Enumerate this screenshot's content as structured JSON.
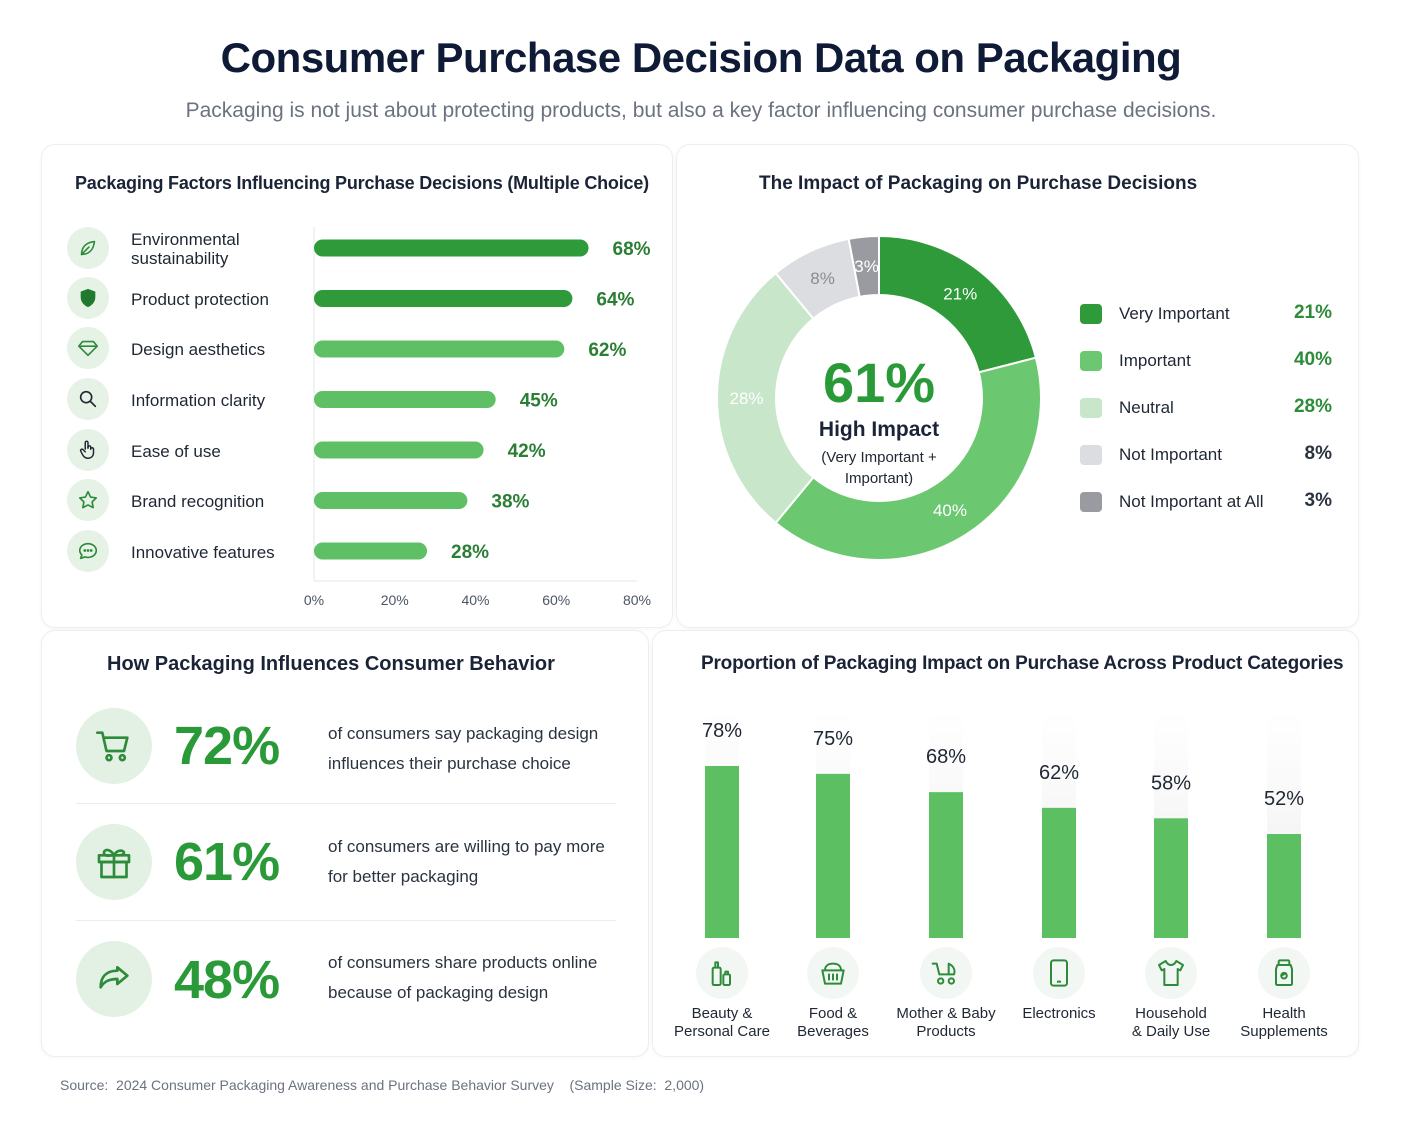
{
  "header": {
    "title": "Consumer Purchase Decision Data on Packaging",
    "subtitle": "Packaging is not just about protecting products, but also a key factor influencing consumer purchase decisions."
  },
  "colors": {
    "dark_green": "#2e9a3a",
    "mid_green": "#5cbf62",
    "light_green": "#c8e6c9",
    "light_gray": "#dcdde0",
    "dark_gray": "#9a9ba0",
    "text_green": "#2a8a36"
  },
  "factors": {
    "title": "Packaging Factors Influencing Purchase Decisions (Multiple Choice)",
    "items": [
      {
        "label": "Environmental sustainability",
        "icon": "leaf-icon"
      },
      {
        "label": "Product protection",
        "icon": "shield-icon"
      },
      {
        "label": "Design aesthetics",
        "icon": "diamond-icon"
      },
      {
        "label": "Information clarity",
        "icon": "search-icon"
      },
      {
        "label": "Ease of use",
        "icon": "hand-icon"
      },
      {
        "label": "Brand recognition",
        "icon": "star-icon"
      },
      {
        "label": "Innovative features",
        "icon": "chat-bubble-icon"
      }
    ]
  },
  "impact": {
    "title": "The Impact of Packaging on Purchase Decisions",
    "center_value": "61%",
    "center_label": "High Impact",
    "center_note": "(Very Important + Important)",
    "legend": [
      {
        "label": "Very Important",
        "value": "21%"
      },
      {
        "label": "Important",
        "value": "40%"
      },
      {
        "label": "Neutral",
        "value": "28%"
      },
      {
        "label": "Not Important",
        "value": "8%"
      },
      {
        "label": "Not Important at All",
        "value": "3%"
      }
    ]
  },
  "behavior": {
    "title": "How Packaging Influences Consumer Behavior",
    "items": [
      {
        "value": "72%",
        "text": "of consumers say packaging design influences their purchase choice",
        "icon": "cart-icon"
      },
      {
        "value": "61%",
        "text": "of consumers are willing to pay more for better packaging",
        "icon": "gift-icon"
      },
      {
        "value": "48%",
        "text": "of consumers share products online because of packaging design",
        "icon": "share-icon"
      }
    ]
  },
  "categories": {
    "title": "Proportion of Packaging Impact on Purchase Across Product Categories",
    "items": [
      {
        "label_line1": "Beauty &",
        "label_line2": "Personal Care",
        "icon": "bottles-icon"
      },
      {
        "label_line1": "Food &",
        "label_line2": "Beverages",
        "icon": "basket-icon"
      },
      {
        "label_line1": "Mother & Baby",
        "label_line2": "Products",
        "icon": "stroller-icon"
      },
      {
        "label_line1": "Electronics",
        "label_line2": "",
        "icon": "phone-icon"
      },
      {
        "label_line1": "Household",
        "label_line2": "& Daily Use",
        "icon": "tshirt-icon"
      },
      {
        "label_line1": "Health",
        "label_line2": "Supplements",
        "icon": "supplement-jar-icon"
      }
    ]
  },
  "footer": {
    "source": "Source:  2024 Consumer Packaging Awareness and Purchase Behavior Survey    (Sample Size:  2,000)"
  },
  "chart_data": [
    {
      "type": "bar",
      "orientation": "horizontal",
      "title": "Packaging Factors Influencing Purchase Decisions (Multiple Choice)",
      "categories": [
        "Environmental sustainability",
        "Product protection",
        "Design aesthetics",
        "Information clarity",
        "Ease of use",
        "Brand recognition",
        "Innovative features"
      ],
      "values": [
        68,
        64,
        62,
        45,
        42,
        38,
        28
      ],
      "value_labels": [
        "68%",
        "64%",
        "62%",
        "45%",
        "42%",
        "38%",
        "28%"
      ],
      "xlim": [
        0,
        80
      ],
      "x_ticks": [
        "0%",
        "20%",
        "40%",
        "60%",
        "80%"
      ]
    },
    {
      "type": "pie",
      "donut": true,
      "title": "The Impact of Packaging on Purchase Decisions",
      "categories": [
        "Very Important",
        "Important",
        "Neutral",
        "Not Important",
        "Not Important at All"
      ],
      "values": [
        21,
        40,
        28,
        8,
        3
      ],
      "value_labels": [
        "21%",
        "40%",
        "28%",
        "8%",
        "3%"
      ],
      "legend": "right"
    },
    {
      "type": "bar",
      "title": "Proportion of Packaging Impact on Purchase Across Product Categories",
      "categories": [
        "Beauty & Personal Care",
        "Food & Beverages",
        "Mother & Baby Products",
        "Electronics",
        "Household & Daily Use",
        "Health Supplements"
      ],
      "values": [
        78,
        75,
        68,
        62,
        58,
        52
      ],
      "value_labels": [
        "78%",
        "75%",
        "68%",
        "62%",
        "58%",
        "52%"
      ]
    }
  ]
}
